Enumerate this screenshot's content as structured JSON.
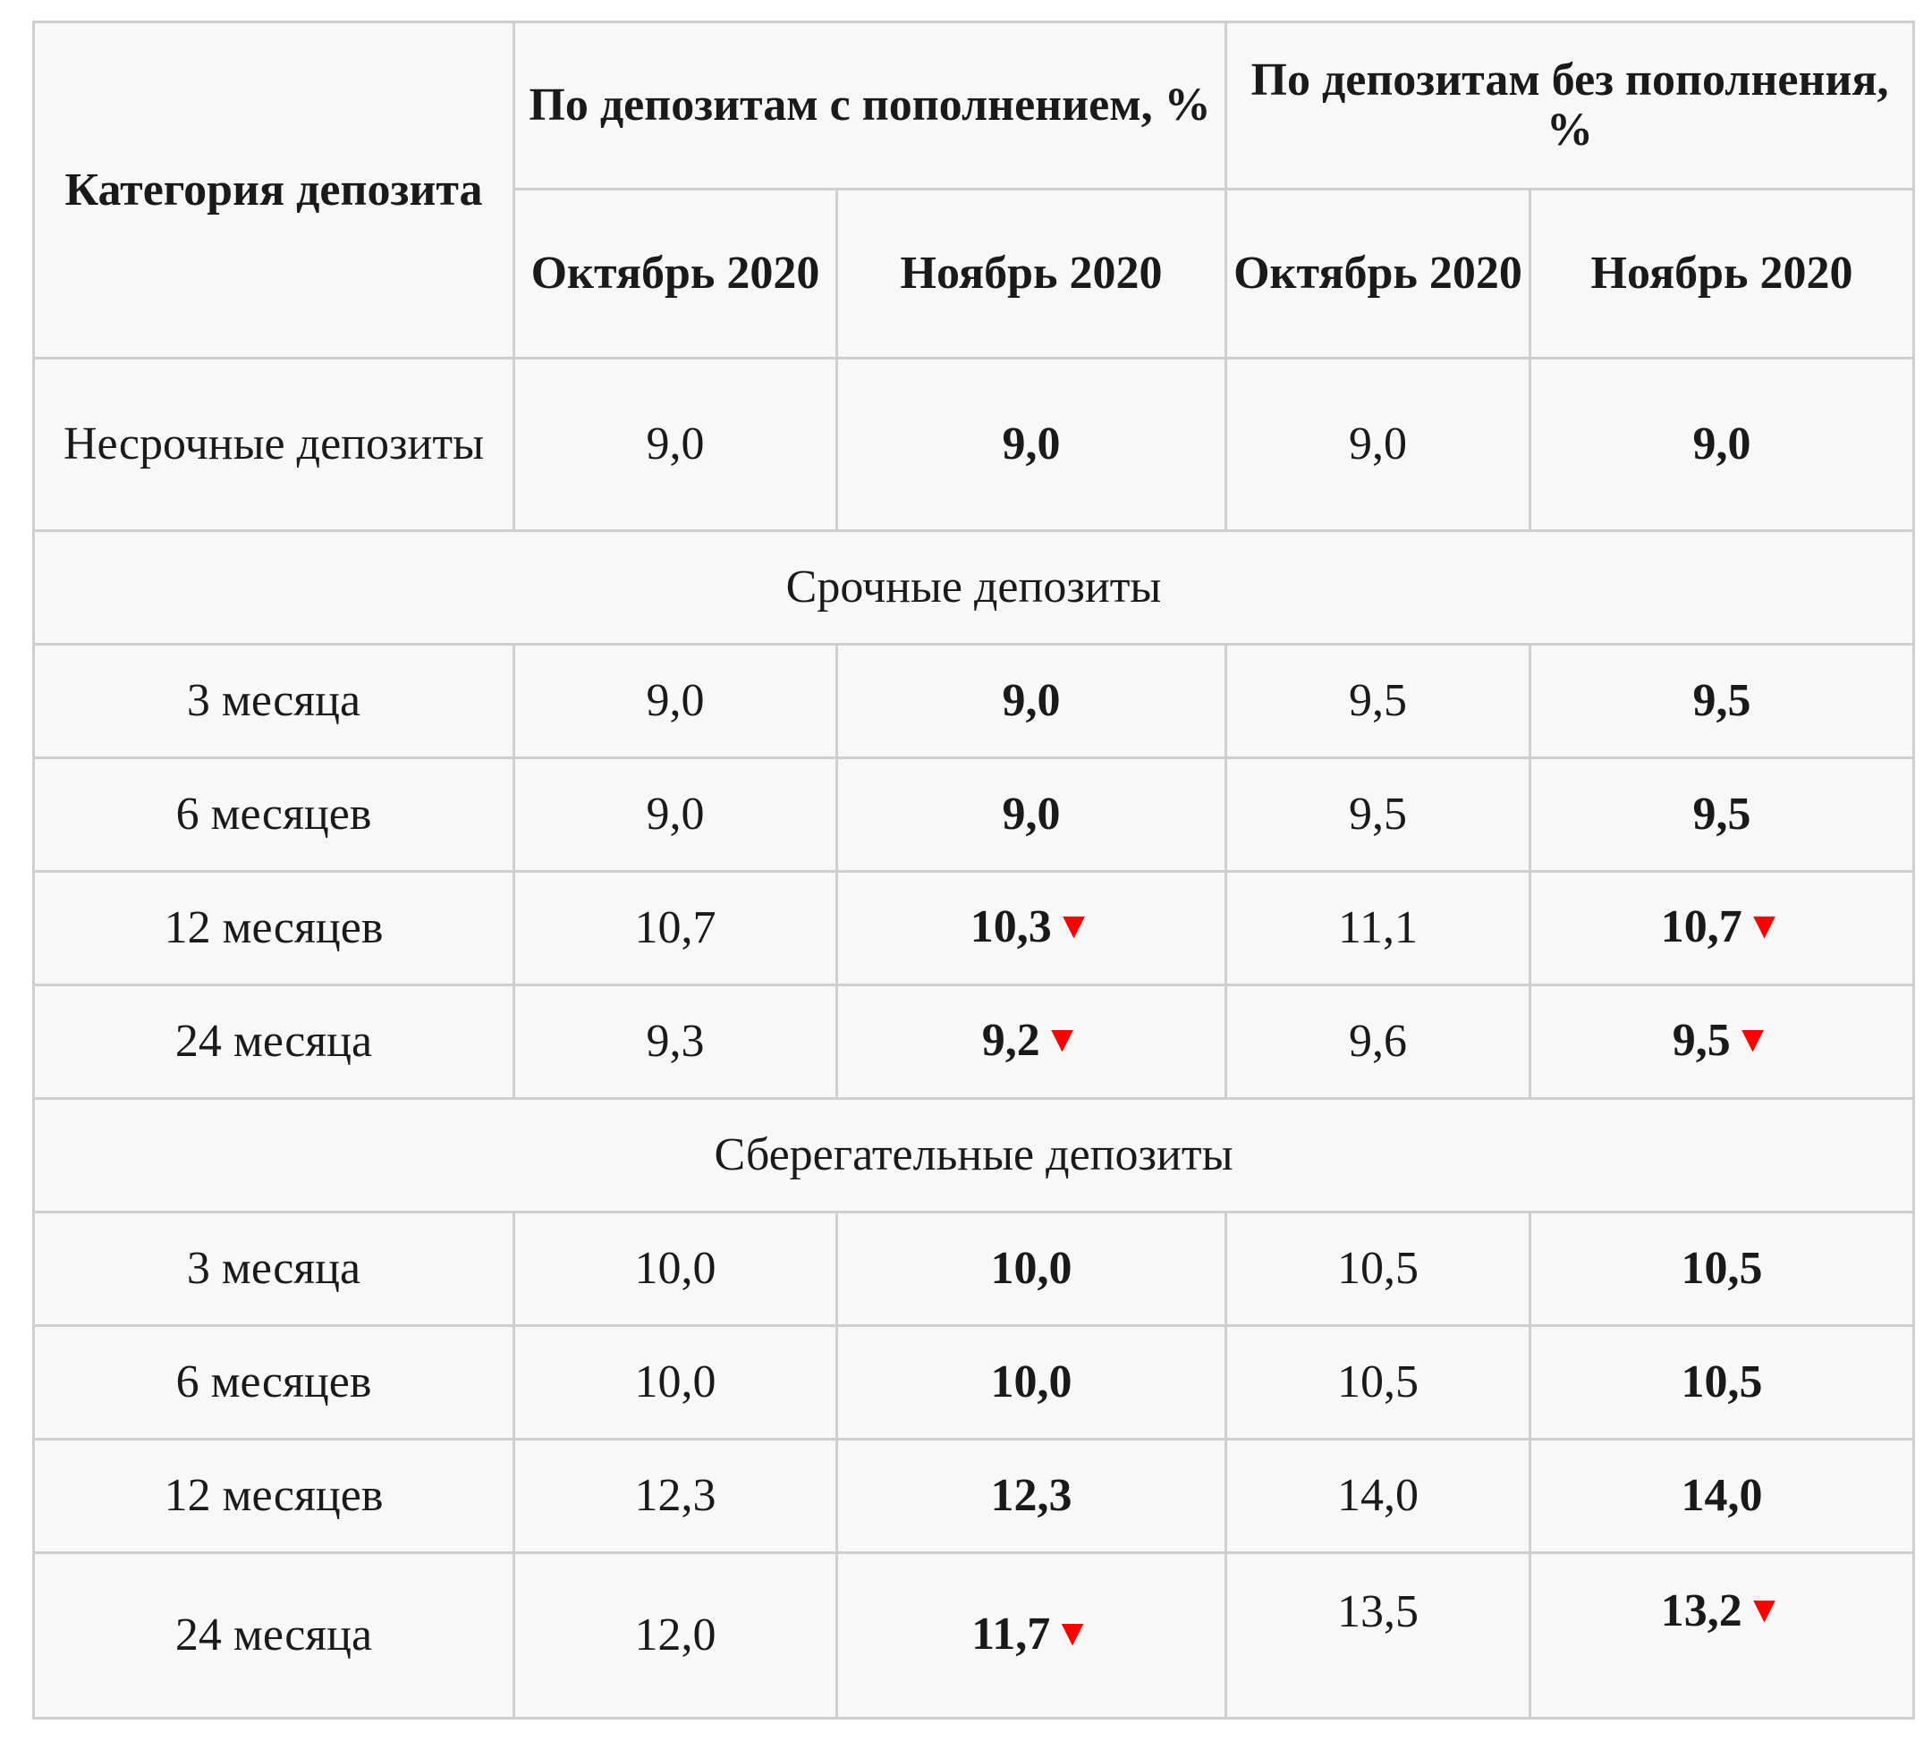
{
  "header": {
    "category": "Категория депозита",
    "group_with": "По депозитам с пополнением, %",
    "group_without": "По депозитам без пополнения, %",
    "oct": "Октябрь 2020",
    "nov": "Ноябрь 2020"
  },
  "down_marker": "▼",
  "accent_blue": "#0b2c8c",
  "down_color": "#ff0000",
  "rows": {
    "demand": {
      "label": "Несрочные депозиты",
      "with_oct": "9,0",
      "with_nov": "9,0",
      "without_oct": "9,0",
      "without_nov": "9,0"
    },
    "term_header": "Срочные депозиты",
    "term": [
      {
        "label": "3 месяца",
        "with_oct": "9,0",
        "with_nov": "9,0",
        "without_oct": "9,5",
        "without_nov": "9,5"
      },
      {
        "label": "6 месяцев",
        "with_oct": "9,0",
        "with_nov": "9,0",
        "without_oct": "9,5",
        "without_nov": "9,5"
      },
      {
        "label": "12 месяцев",
        "with_oct": "10,7",
        "with_nov": "10,3",
        "without_oct": "11,1",
        "without_nov": "10,7"
      },
      {
        "label": "24 месяца",
        "with_oct": "9,3",
        "with_nov": "9,2",
        "without_oct": "9,6",
        "without_nov": "9,5"
      }
    ],
    "savings_header": "Сберегательные депозиты",
    "savings": [
      {
        "label": "3 месяца",
        "with_oct": "10,0",
        "with_nov": "10,0",
        "without_oct": "10,5",
        "without_nov": "10,5"
      },
      {
        "label": "6 месяцев",
        "with_oct": "10,0",
        "with_nov": "10,0",
        "without_oct": "10,5",
        "without_nov": "10,5"
      },
      {
        "label": "12 месяцев",
        "with_oct": "12,3",
        "with_nov": "12,3",
        "without_oct": "14,0",
        "without_nov": "14,0"
      },
      {
        "label": "24 месяца",
        "with_oct": "12,0",
        "with_nov": "11,7",
        "without_oct": "13,5",
        "without_nov": "13,2"
      }
    ]
  }
}
